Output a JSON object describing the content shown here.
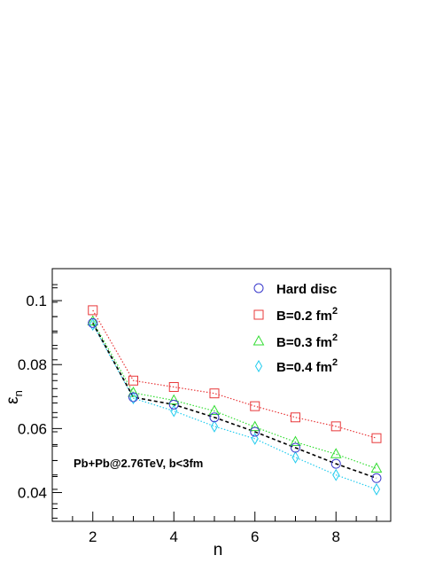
{
  "chart_data": {
    "type": "line",
    "title": "",
    "xlabel": "n",
    "ylabel": "ε",
    "ylabel_sub": "n",
    "xlim": [
      1,
      9.35
    ],
    "ylim": [
      0.031,
      0.11
    ],
    "xticks": [
      2,
      4,
      6,
      8
    ],
    "yticks": [
      0.04,
      0.06,
      0.08,
      0.1
    ],
    "ytick_labels": [
      "0.04",
      "0.06",
      "0.08",
      "0.1"
    ],
    "annotation": "Pb+Pb@2.76TeV, b<3fm",
    "legend_position": "top-right",
    "x": [
      2,
      3,
      4,
      5,
      6,
      7,
      8,
      9
    ],
    "series": [
      {
        "name": "Hard disc",
        "name_sup": "",
        "marker": "circle",
        "color": "#3a3acc",
        "line_color": "#000000",
        "line_style": "dashed",
        "values": [
          0.093,
          0.0698,
          0.0675,
          0.0635,
          0.059,
          0.054,
          0.049,
          0.0445
        ]
      },
      {
        "name": "B=0.2 fm",
        "name_sup": "2",
        "marker": "square",
        "color": "#e8383a",
        "line_color": "#e8383a",
        "line_style": "dotted",
        "values": [
          0.097,
          0.075,
          0.073,
          0.071,
          0.067,
          0.0635,
          0.0607,
          0.057
        ]
      },
      {
        "name": "B=0.3 fm",
        "name_sup": "2",
        "marker": "triangle",
        "color": "#33dd33",
        "line_color": "#33dd33",
        "line_style": "dotted",
        "values": [
          0.0935,
          0.0712,
          0.0688,
          0.0655,
          0.0605,
          0.0558,
          0.052,
          0.0475
        ]
      },
      {
        "name": "B=0.4 fm",
        "name_sup": "2",
        "marker": "diamond",
        "color": "#22ccee",
        "line_color": "#22ccee",
        "line_style": "dotted",
        "values": [
          0.0925,
          0.0695,
          0.0655,
          0.0607,
          0.0568,
          0.051,
          0.0455,
          0.041
        ]
      }
    ]
  }
}
